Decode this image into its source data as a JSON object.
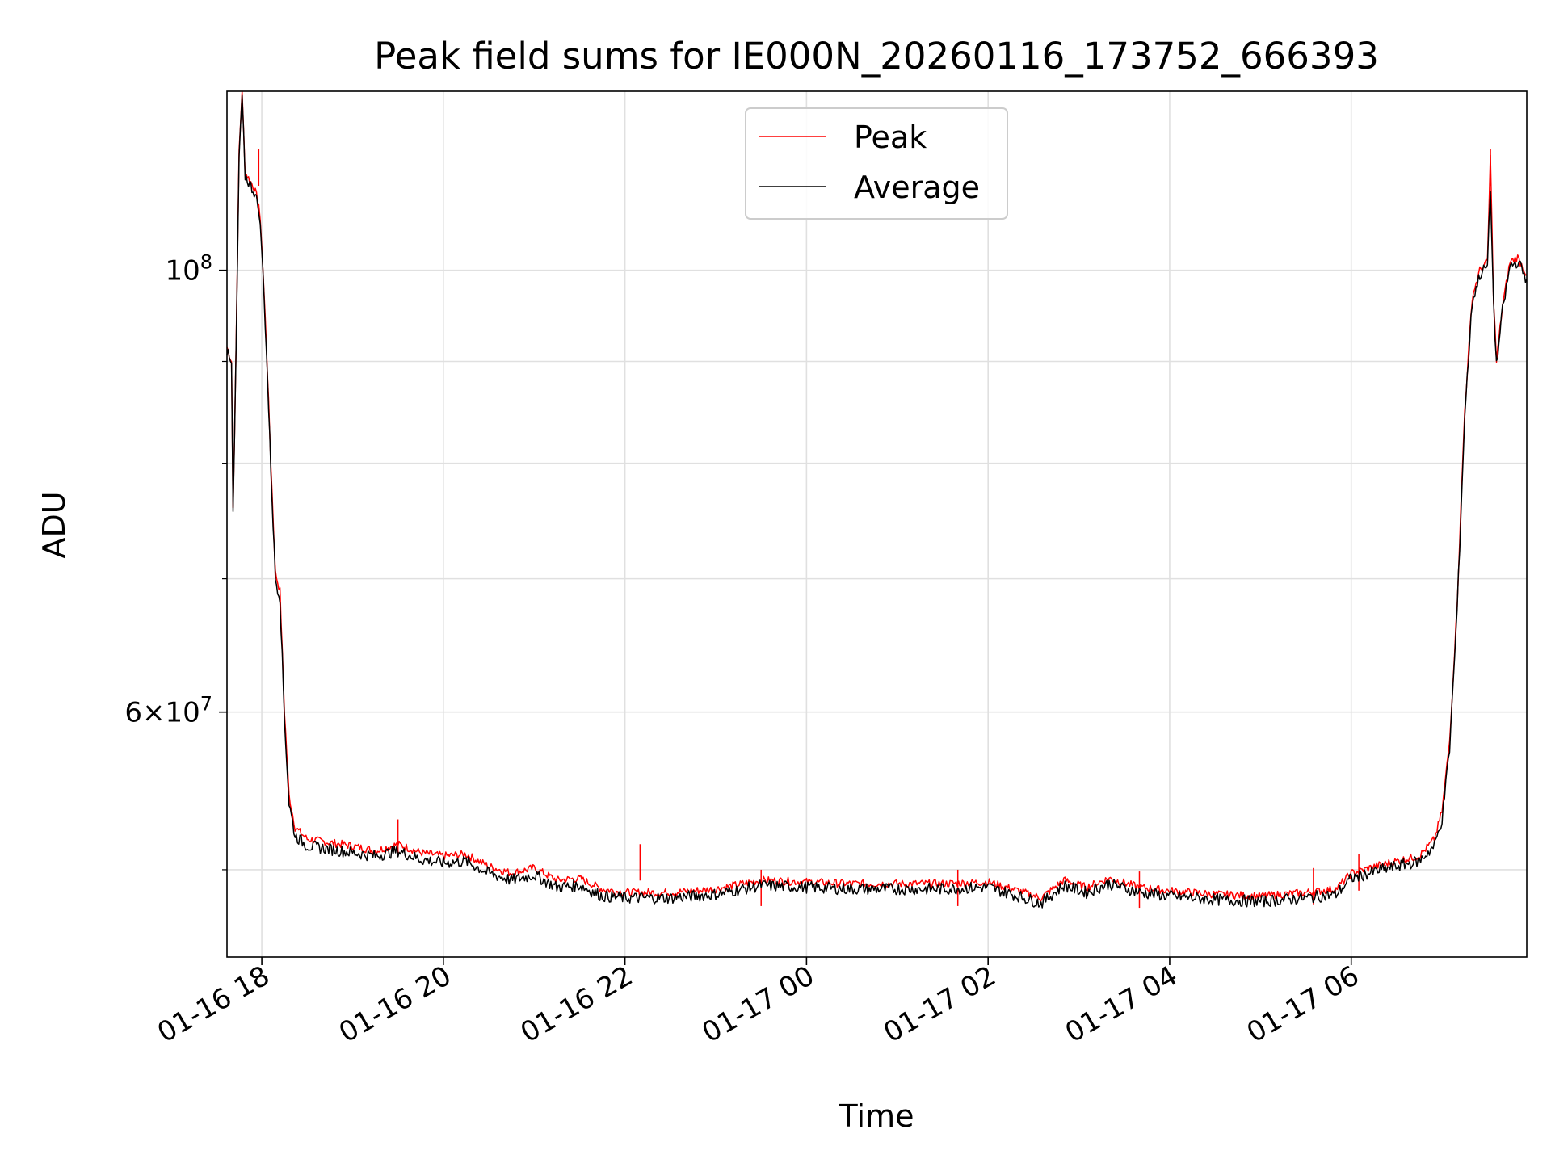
{
  "chart_data": {
    "type": "line",
    "title": "Peak field sums for IE000N_20260116_173752_666393",
    "xlabel": "Time",
    "ylabel": "ADU",
    "x_scale": "time",
    "y_scale": "log",
    "grid": true,
    "legend_position": "top-center",
    "x_range": [
      "2026-01-16T17:37",
      "2026-01-17T07:56"
    ],
    "y_range": [
      45200000,
      123000000
    ],
    "x_ticks": [
      {
        "label": "01-16 18",
        "value": "2026-01-16T18:00"
      },
      {
        "label": "01-16 20",
        "value": "2026-01-16T20:00"
      },
      {
        "label": "01-16 22",
        "value": "2026-01-16T22:00"
      },
      {
        "label": "01-17 00",
        "value": "2026-01-17T00:00"
      },
      {
        "label": "01-17 02",
        "value": "2026-01-17T02:00"
      },
      {
        "label": "01-17 04",
        "value": "2026-01-17T04:00"
      },
      {
        "label": "01-17 06",
        "value": "2026-01-17T06:00"
      }
    ],
    "y_major_ticks": [
      {
        "value": 60000000,
        "mantissa": "6",
        "base": "10",
        "exp": "7"
      },
      {
        "value": 100000000,
        "mantissa": "",
        "base": "10",
        "exp": "8"
      }
    ],
    "y_minor_ticks": [
      50000000,
      70000000,
      80000000,
      90000000
    ],
    "series": [
      {
        "name": "Peak",
        "color": "#ff0000",
        "points": [
          [
            "2026-01-16T17:37",
            91500000
          ],
          [
            "2026-01-16T17:40",
            90000000
          ],
          [
            "2026-01-16T17:41",
            76000000
          ],
          [
            "2026-01-16T17:43",
            91000000
          ],
          [
            "2026-01-16T17:45",
            115000000
          ],
          [
            "2026-01-16T17:47",
            123000000
          ],
          [
            "2026-01-16T17:49",
            112000000
          ],
          [
            "2026-01-16T17:52",
            111000000
          ],
          [
            "2026-01-16T17:55",
            110000000
          ],
          [
            "2026-01-16T17:58",
            108000000
          ],
          [
            "2026-01-16T18:00",
            103000000
          ],
          [
            "2026-01-16T18:03",
            92000000
          ],
          [
            "2026-01-16T18:06",
            80000000
          ],
          [
            "2026-01-16T18:09",
            70500000
          ],
          [
            "2026-01-16T18:12",
            69000000
          ],
          [
            "2026-01-16T18:15",
            60000000
          ],
          [
            "2026-01-16T18:18",
            54500000
          ],
          [
            "2026-01-16T18:22",
            52500000
          ],
          [
            "2026-01-16T18:30",
            51800000
          ],
          [
            "2026-01-16T18:45",
            51600000
          ],
          [
            "2026-01-16T19:00",
            51400000
          ],
          [
            "2026-01-16T19:15",
            51100000
          ],
          [
            "2026-01-16T19:30",
            51500000
          ],
          [
            "2026-01-16T19:45",
            51000000
          ],
          [
            "2026-01-16T20:00",
            50800000
          ],
          [
            "2026-01-16T20:15",
            50900000
          ],
          [
            "2026-01-16T20:30",
            50200000
          ],
          [
            "2026-01-16T20:45",
            49800000
          ],
          [
            "2026-01-16T21:00",
            50100000
          ],
          [
            "2026-01-16T21:15",
            49400000
          ],
          [
            "2026-01-16T21:30",
            49500000
          ],
          [
            "2026-01-16T21:45",
            48900000
          ],
          [
            "2026-01-16T22:00",
            48700000
          ],
          [
            "2026-01-16T22:30",
            48700000
          ],
          [
            "2026-01-16T23:00",
            48900000
          ],
          [
            "2026-01-16T23:30",
            49400000
          ],
          [
            "2026-01-17T00:00",
            49300000
          ],
          [
            "2026-01-17T00:30",
            49200000
          ],
          [
            "2026-01-17T01:00",
            49200000
          ],
          [
            "2026-01-17T01:30",
            49200000
          ],
          [
            "2026-01-17T02:00",
            49300000
          ],
          [
            "2026-01-17T02:20",
            48800000
          ],
          [
            "2026-01-17T02:35",
            48400000
          ],
          [
            "2026-01-17T02:50",
            49400000
          ],
          [
            "2026-01-17T03:05",
            49000000
          ],
          [
            "2026-01-17T03:20",
            49500000
          ],
          [
            "2026-01-17T03:40",
            49000000
          ],
          [
            "2026-01-17T04:00",
            48800000
          ],
          [
            "2026-01-17T04:30",
            48600000
          ],
          [
            "2026-01-17T05:00",
            48500000
          ],
          [
            "2026-01-17T05:30",
            48700000
          ],
          [
            "2026-01-17T05:50",
            48900000
          ],
          [
            "2026-01-17T06:00",
            49800000
          ],
          [
            "2026-01-17T06:20",
            50300000
          ],
          [
            "2026-01-17T06:45",
            50800000
          ],
          [
            "2026-01-17T06:55",
            51800000
          ],
          [
            "2026-01-17T07:00",
            53500000
          ],
          [
            "2026-01-17T07:05",
            58000000
          ],
          [
            "2026-01-17T07:10",
            68000000
          ],
          [
            "2026-01-17T07:15",
            85000000
          ],
          [
            "2026-01-17T07:20",
            97000000
          ],
          [
            "2026-01-17T07:25",
            100000000
          ],
          [
            "2026-01-17T07:30",
            101000000
          ],
          [
            "2026-01-17T07:32",
            114000000
          ],
          [
            "2026-01-17T07:34",
            97000000
          ],
          [
            "2026-01-17T07:36",
            90000000
          ],
          [
            "2026-01-17T07:40",
            96000000
          ],
          [
            "2026-01-17T07:45",
            101000000
          ],
          [
            "2026-01-17T07:50",
            101500000
          ],
          [
            "2026-01-17T07:56",
            99500000
          ]
        ],
        "spikes": [
          [
            "2026-01-16T17:58",
            115000000
          ],
          [
            "2026-01-16T19:30",
            53000000
          ],
          [
            "2026-01-16T22:10",
            51500000
          ],
          [
            "2026-01-16T23:30",
            50000000
          ],
          [
            "2026-01-17T01:40",
            50000000
          ],
          [
            "2026-01-17T03:40",
            49900000
          ],
          [
            "2026-01-17T05:35",
            50100000
          ],
          [
            "2026-01-17T06:05",
            50900000
          ],
          [
            "2026-01-17T07:32",
            115000000
          ]
        ]
      },
      {
        "name": "Average",
        "color": "#000000",
        "points": [
          [
            "2026-01-16T17:37",
            91000000
          ],
          [
            "2026-01-16T17:40",
            89500000
          ],
          [
            "2026-01-16T17:41",
            75500000
          ],
          [
            "2026-01-16T17:43",
            90500000
          ],
          [
            "2026-01-16T17:45",
            114000000
          ],
          [
            "2026-01-16T17:47",
            122000000
          ],
          [
            "2026-01-16T17:49",
            111500000
          ],
          [
            "2026-01-16T17:52",
            110500000
          ],
          [
            "2026-01-16T17:55",
            109500000
          ],
          [
            "2026-01-16T17:58",
            107500000
          ],
          [
            "2026-01-16T18:00",
            102500000
          ],
          [
            "2026-01-16T18:03",
            91500000
          ],
          [
            "2026-01-16T18:06",
            79500000
          ],
          [
            "2026-01-16T18:09",
            70000000
          ],
          [
            "2026-01-16T18:12",
            68500000
          ],
          [
            "2026-01-16T18:15",
            59500000
          ],
          [
            "2026-01-16T18:18",
            54000000
          ],
          [
            "2026-01-16T18:22",
            52000000
          ],
          [
            "2026-01-16T18:30",
            51400000
          ],
          [
            "2026-01-16T18:45",
            51200000
          ],
          [
            "2026-01-16T19:00",
            51000000
          ],
          [
            "2026-01-16T19:15",
            50800000
          ],
          [
            "2026-01-16T19:30",
            51100000
          ],
          [
            "2026-01-16T19:45",
            50600000
          ],
          [
            "2026-01-16T20:00",
            50400000
          ],
          [
            "2026-01-16T20:15",
            50500000
          ],
          [
            "2026-01-16T20:30",
            49800000
          ],
          [
            "2026-01-16T20:45",
            49400000
          ],
          [
            "2026-01-16T21:00",
            49700000
          ],
          [
            "2026-01-16T21:15",
            49000000
          ],
          [
            "2026-01-16T21:30",
            49100000
          ],
          [
            "2026-01-16T21:45",
            48500000
          ],
          [
            "2026-01-16T22:00",
            48400000
          ],
          [
            "2026-01-16T22:30",
            48400000
          ],
          [
            "2026-01-16T23:00",
            48600000
          ],
          [
            "2026-01-16T23:30",
            49100000
          ],
          [
            "2026-01-17T00:00",
            49000000
          ],
          [
            "2026-01-17T00:30",
            48900000
          ],
          [
            "2026-01-17T01:00",
            48900000
          ],
          [
            "2026-01-17T01:30",
            48900000
          ],
          [
            "2026-01-17T02:00",
            49000000
          ],
          [
            "2026-01-17T02:20",
            48500000
          ],
          [
            "2026-01-17T02:35",
            48100000
          ],
          [
            "2026-01-17T02:50",
            49100000
          ],
          [
            "2026-01-17T03:05",
            48700000
          ],
          [
            "2026-01-17T03:20",
            49200000
          ],
          [
            "2026-01-17T03:40",
            48700000
          ],
          [
            "2026-01-17T04:00",
            48500000
          ],
          [
            "2026-01-17T04:30",
            48300000
          ],
          [
            "2026-01-17T05:00",
            48200000
          ],
          [
            "2026-01-17T05:30",
            48400000
          ],
          [
            "2026-01-17T05:50",
            48600000
          ],
          [
            "2026-01-17T06:00",
            49500000
          ],
          [
            "2026-01-17T06:20",
            50000000
          ],
          [
            "2026-01-17T06:45",
            50500000
          ],
          [
            "2026-01-17T06:55",
            51400000
          ],
          [
            "2026-01-17T07:00",
            53000000
          ],
          [
            "2026-01-17T07:05",
            57500000
          ],
          [
            "2026-01-17T07:10",
            67500000
          ],
          [
            "2026-01-17T07:15",
            84500000
          ],
          [
            "2026-01-17T07:20",
            96500000
          ],
          [
            "2026-01-17T07:25",
            99500000
          ],
          [
            "2026-01-17T07:30",
            100500000
          ],
          [
            "2026-01-17T07:32",
            110000000
          ],
          [
            "2026-01-17T07:34",
            96500000
          ],
          [
            "2026-01-17T07:36",
            89500000
          ],
          [
            "2026-01-17T07:40",
            95500000
          ],
          [
            "2026-01-17T07:45",
            100500000
          ],
          [
            "2026-01-17T07:50",
            101000000
          ],
          [
            "2026-01-17T07:56",
            99000000
          ]
        ]
      }
    ]
  }
}
